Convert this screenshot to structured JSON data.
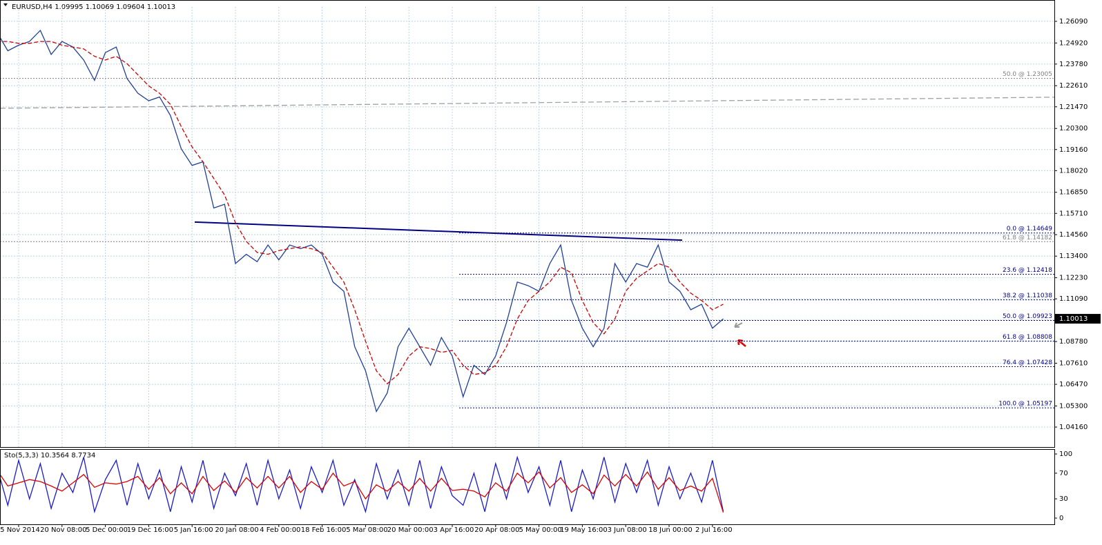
{
  "chart_data": [
    {
      "type": "line",
      "title": "EURUSD,H4  1.09995 1.10069 1.09604 1.10013",
      "categories": [
        null,
        null,
        "5 Nov 2014",
        null,
        null,
        null,
        "20 Nov 08:00",
        null,
        null,
        null,
        "5 Dec 00:00",
        null,
        null,
        null,
        "19 Dec 16:00",
        null,
        null,
        null,
        "5 Jan 16:00",
        null,
        null,
        null,
        "20 Jan 08:00",
        null,
        null,
        null,
        "4 Feb 00:00",
        null,
        null,
        null,
        "18 Feb 16:00",
        null,
        null,
        null,
        "5 Mar 08:00",
        null,
        null,
        null,
        "20 Mar 00:00",
        null,
        null,
        null,
        "3 Apr 16:00",
        null,
        null,
        null,
        "20 Apr 08:00",
        null,
        null,
        null,
        "5 May 00:00",
        null,
        null,
        null,
        "19 May 16:00",
        null,
        null,
        null,
        "3 Jun 08:00",
        null,
        null,
        null,
        "18 Jun 00:00",
        null,
        null,
        null,
        "2 Jul 16:00",
        null
      ],
      "series": [
        {
          "color": "#1f3f9a",
          "values": [
            1.255,
            1.245,
            1.248,
            1.25,
            1.256,
            1.243,
            1.25,
            1.247,
            1.24,
            1.229,
            1.244,
            1.247,
            1.23,
            1.222,
            1.218,
            1.22,
            1.21,
            1.192,
            1.183,
            1.185,
            1.16,
            1.162,
            1.13,
            1.135,
            1.131,
            1.14,
            1.132,
            1.14,
            1.138,
            1.14,
            1.135,
            1.12,
            1.115,
            1.085,
            1.072,
            1.05,
            1.06,
            1.085,
            1.095,
            1.085,
            1.075,
            1.09,
            1.08,
            1.058,
            1.075,
            1.07,
            1.08,
            1.098,
            1.12,
            1.118,
            1.115,
            1.13,
            1.14,
            1.11,
            1.095,
            1.085,
            1.095,
            1.13,
            1.12,
            1.13,
            1.128,
            1.14,
            1.12,
            1.115,
            1.105,
            1.108,
            1.095,
            1.10013
          ]
        },
        {
          "color": "#cc0000",
          "dashed": true,
          "values": [
            1.25,
            1.25,
            1.249,
            1.249,
            1.25,
            1.25,
            1.248,
            1.247,
            1.246,
            1.242,
            1.24,
            1.242,
            1.238,
            1.232,
            1.226,
            1.222,
            1.216,
            1.204,
            1.193,
            1.185,
            1.176,
            1.167,
            1.152,
            1.142,
            1.136,
            1.135,
            1.137,
            1.138,
            1.139,
            1.138,
            1.136,
            1.128,
            1.12,
            1.105,
            1.088,
            1.072,
            1.065,
            1.07,
            1.08,
            1.085,
            1.084,
            1.082,
            1.083,
            1.075,
            1.07,
            1.071,
            1.075,
            1.085,
            1.1,
            1.11,
            1.115,
            1.12,
            1.128,
            1.125,
            1.11,
            1.098,
            1.092,
            1.1,
            1.115,
            1.122,
            1.126,
            1.13,
            1.128,
            1.12,
            1.114,
            1.11,
            1.105,
            1.108
          ]
        }
      ],
      "ma_long": {
        "color": "#a0a0a0",
        "values": [
          1.2139,
          1.2199
        ]
      },
      "trendline": {
        "color": "#000080",
        "values": [
          1.1524,
          1.1426
        ]
      },
      "levels": [
        {
          "label": "50.0 @ 1.23005",
          "value": 1.23005,
          "color": "#808080"
        },
        {
          "label": "61.8 @ 1.14182",
          "value": 1.14182,
          "color": "#808080"
        },
        {
          "label": "0.0 @ 1.14649",
          "value": 1.14649,
          "color": "#000080"
        },
        {
          "label": "23.6 @ 1.12418",
          "value": 1.12418,
          "color": "#000080"
        },
        {
          "label": "38.2 @ 1.11038",
          "value": 1.11038,
          "color": "#000080"
        },
        {
          "label": "50.0 @ 1.09923",
          "value": 1.09923,
          "color": "#000080"
        },
        {
          "label": "61.8 @ 1.08808",
          "value": 1.08808,
          "color": "#000080"
        },
        {
          "label": "76.4 @ 1.07428",
          "value": 1.07428,
          "color": "#000080"
        },
        {
          "label": "100.0 @ 1.05197",
          "value": 1.05197,
          "color": "#000080"
        }
      ],
      "last_price": 1.10013,
      "ylim": [
        1.0308,
        1.2687
      ],
      "yticks": [
        {
          "value": 1.2609,
          "label": "1.26090"
        },
        {
          "value": 1.2492,
          "label": "1.24920"
        },
        {
          "value": 1.2378,
          "label": "1.23780"
        },
        {
          "value": 1.2261,
          "label": "1.22610"
        },
        {
          "value": 1.2147,
          "label": "1.21470"
        },
        {
          "value": 1.203,
          "label": "1.20300"
        },
        {
          "value": 1.1916,
          "label": "1.19160"
        },
        {
          "value": 1.1802,
          "label": "1.18020"
        },
        {
          "value": 1.1685,
          "label": "1.16850"
        },
        {
          "value": 1.1571,
          "label": "1.15710"
        },
        {
          "value": 1.1456,
          "label": "1.14560"
        },
        {
          "value": 1.134,
          "label": "1.13400"
        },
        {
          "value": 1.1223,
          "label": "1.12230"
        },
        {
          "value": 1.1109,
          "label": "1.11090"
        },
        {
          "value": 1.0995,
          "label": "1.09950"
        },
        {
          "value": 1.0878,
          "label": "1.08780"
        },
        {
          "value": 1.0761,
          "label": "1.07610"
        },
        {
          "value": 1.0647,
          "label": "1.06470"
        },
        {
          "value": 1.053,
          "label": "1.05300"
        },
        {
          "value": 1.0416,
          "label": "1.04160"
        }
      ],
      "grid": true
    },
    {
      "type": "line",
      "title": "Sto(5,3,3) 10.3564 8.7734",
      "series": [
        {
          "color": "#1a1acc",
          "values": [
            80,
            20,
            90,
            30,
            85,
            15,
            70,
            40,
            95,
            10,
            60,
            90,
            20,
            85,
            30,
            75,
            10,
            80,
            25,
            90,
            15,
            70,
            35,
            85,
            20,
            90,
            30,
            75,
            15,
            80,
            40,
            90,
            20,
            60,
            10,
            85,
            30,
            75,
            20,
            90,
            15,
            80,
            35,
            20,
            70,
            10,
            85,
            30,
            95,
            40,
            80,
            20,
            90,
            10,
            75,
            30,
            95,
            25,
            85,
            40,
            90,
            20,
            80,
            30,
            70,
            25,
            90,
            10.36
          ]
        },
        {
          "color": "#dd0000",
          "values": [
            75,
            50,
            55,
            60,
            57,
            50,
            42,
            55,
            68,
            48,
            55,
            53,
            57,
            65,
            45,
            63,
            38,
            55,
            38,
            65,
            43,
            58,
            40,
            63,
            47,
            65,
            47,
            65,
            40,
            57,
            45,
            70,
            50,
            57,
            30,
            52,
            42,
            57,
            42,
            62,
            42,
            62,
            43,
            45,
            42,
            33,
            55,
            42,
            70,
            55,
            72,
            47,
            63,
            40,
            52,
            38,
            67,
            50,
            68,
            50,
            72,
            45,
            63,
            43,
            50,
            42,
            62,
            8.77
          ]
        }
      ],
      "ylim": [
        -9.7,
        106.5
      ],
      "yticks": [
        0,
        30,
        70,
        100
      ]
    }
  ]
}
